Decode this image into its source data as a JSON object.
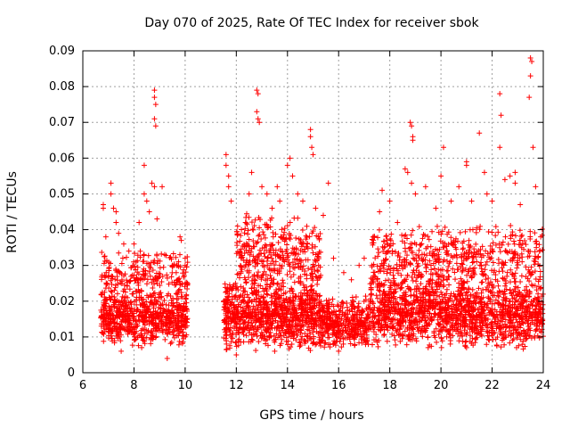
{
  "chart_data": {
    "type": "scatter",
    "title": "Day 070 of 2025, Rate Of TEC Index for receiver sbok",
    "xlabel": "GPS time / hours",
    "ylabel": "ROTI / TECUs",
    "xlim": [
      6,
      24
    ],
    "ylim": [
      0,
      0.09
    ],
    "xticks": [
      "6",
      "8",
      "10",
      "12",
      "14",
      "16",
      "18",
      "20",
      "22",
      "24"
    ],
    "yticks": [
      "0",
      "0.01",
      "0.02",
      "0.03",
      "0.04",
      "0.05",
      "0.06",
      "0.07",
      "0.08",
      "0.09"
    ],
    "grid": true,
    "marker": "+",
    "color": "#ff0000",
    "series": [
      {
        "name": "ROTI",
        "points": [
          [
            6.8,
            0.047
          ],
          [
            6.8,
            0.046
          ],
          [
            6.9,
            0.038
          ],
          [
            7.1,
            0.053
          ],
          [
            7.1,
            0.05
          ],
          [
            7.2,
            0.046
          ],
          [
            7.3,
            0.045
          ],
          [
            7.3,
            0.042
          ],
          [
            7.4,
            0.039
          ],
          [
            7.6,
            0.036
          ],
          [
            7.8,
            0.034
          ],
          [
            8.0,
            0.036
          ],
          [
            8.2,
            0.042
          ],
          [
            8.4,
            0.058
          ],
          [
            8.4,
            0.05
          ],
          [
            8.5,
            0.048
          ],
          [
            8.6,
            0.045
          ],
          [
            8.7,
            0.053
          ],
          [
            8.8,
            0.079
          ],
          [
            8.8,
            0.077
          ],
          [
            8.85,
            0.075
          ],
          [
            8.8,
            0.071
          ],
          [
            8.85,
            0.069
          ],
          [
            8.8,
            0.052
          ],
          [
            8.9,
            0.043
          ],
          [
            9.1,
            0.052
          ],
          [
            9.2,
            0.033
          ],
          [
            9.5,
            0.03
          ],
          [
            9.8,
            0.038
          ],
          [
            9.85,
            0.037
          ],
          [
            10.0,
            0.032
          ],
          [
            10.0,
            0.03
          ],
          [
            9.3,
            0.004
          ],
          [
            7.5,
            0.006
          ],
          [
            8.3,
            0.007
          ],
          [
            11.6,
            0.061
          ],
          [
            11.6,
            0.058
          ],
          [
            11.7,
            0.055
          ],
          [
            11.7,
            0.052
          ],
          [
            11.8,
            0.048
          ],
          [
            12.2,
            0.04
          ],
          [
            12.5,
            0.05
          ],
          [
            12.6,
            0.056
          ],
          [
            12.8,
            0.079
          ],
          [
            12.85,
            0.078
          ],
          [
            12.8,
            0.073
          ],
          [
            12.85,
            0.071
          ],
          [
            12.9,
            0.07
          ],
          [
            13.0,
            0.052
          ],
          [
            13.2,
            0.05
          ],
          [
            13.4,
            0.046
          ],
          [
            13.6,
            0.052
          ],
          [
            13.7,
            0.048
          ],
          [
            14.0,
            0.058
          ],
          [
            14.1,
            0.06
          ],
          [
            14.2,
            0.055
          ],
          [
            14.4,
            0.05
          ],
          [
            14.6,
            0.048
          ],
          [
            14.9,
            0.068
          ],
          [
            14.9,
            0.066
          ],
          [
            14.95,
            0.063
          ],
          [
            15.0,
            0.061
          ],
          [
            15.1,
            0.046
          ],
          [
            15.4,
            0.044
          ],
          [
            15.6,
            0.053
          ],
          [
            15.8,
            0.032
          ],
          [
            16.2,
            0.028
          ],
          [
            16.5,
            0.026
          ],
          [
            16.8,
            0.03
          ],
          [
            17.0,
            0.032
          ],
          [
            17.4,
            0.038
          ],
          [
            17.6,
            0.045
          ],
          [
            17.7,
            0.051
          ],
          [
            18.0,
            0.048
          ],
          [
            18.3,
            0.042
          ],
          [
            18.6,
            0.057
          ],
          [
            18.7,
            0.056
          ],
          [
            18.8,
            0.07
          ],
          [
            18.85,
            0.069
          ],
          [
            18.9,
            0.066
          ],
          [
            18.9,
            0.065
          ],
          [
            18.85,
            0.053
          ],
          [
            19.0,
            0.05
          ],
          [
            19.4,
            0.052
          ],
          [
            19.8,
            0.046
          ],
          [
            20.0,
            0.055
          ],
          [
            20.1,
            0.063
          ],
          [
            20.4,
            0.048
          ],
          [
            20.7,
            0.052
          ],
          [
            21.0,
            0.059
          ],
          [
            21.0,
            0.058
          ],
          [
            21.2,
            0.048
          ],
          [
            21.5,
            0.067
          ],
          [
            21.7,
            0.056
          ],
          [
            21.8,
            0.05
          ],
          [
            22.0,
            0.048
          ],
          [
            22.3,
            0.078
          ],
          [
            22.35,
            0.072
          ],
          [
            22.3,
            0.063
          ],
          [
            22.5,
            0.054
          ],
          [
            22.7,
            0.055
          ],
          [
            22.9,
            0.056
          ],
          [
            22.9,
            0.053
          ],
          [
            23.1,
            0.047
          ],
          [
            23.5,
            0.088
          ],
          [
            23.55,
            0.087
          ],
          [
            23.5,
            0.083
          ],
          [
            23.45,
            0.077
          ],
          [
            23.6,
            0.063
          ],
          [
            23.7,
            0.052
          ],
          [
            23.9,
            0.038
          ],
          [
            12.0,
            0.005
          ],
          [
            13.5,
            0.006
          ],
          [
            16.0,
            0.006
          ],
          [
            19.5,
            0.007
          ],
          [
            21.0,
            0.007
          ]
        ],
        "bands": [
          {
            "x_range": [
              6.7,
              10.1
            ],
            "y_range": [
              0.007,
              0.024
            ],
            "density": 700
          },
          {
            "x_range": [
              6.7,
              10.1
            ],
            "y_range": [
              0.02,
              0.035
            ],
            "density": 220
          },
          {
            "x_range": [
              11.5,
              15.3
            ],
            "y_range": [
              0.006,
              0.026
            ],
            "density": 900
          },
          {
            "x_range": [
              12.0,
              15.3
            ],
            "y_range": [
              0.02,
              0.045
            ],
            "density": 380
          },
          {
            "x_range": [
              15.3,
              17.2
            ],
            "y_range": [
              0.006,
              0.022
            ],
            "density": 380
          },
          {
            "x_range": [
              17.2,
              20.0
            ],
            "y_range": [
              0.007,
              0.028
            ],
            "density": 600
          },
          {
            "x_range": [
              17.3,
              20.0
            ],
            "y_range": [
              0.022,
              0.042
            ],
            "density": 220
          },
          {
            "x_range": [
              20.0,
              24.0
            ],
            "y_range": [
              0.006,
              0.027
            ],
            "density": 850
          },
          {
            "x_range": [
              20.0,
              24.0
            ],
            "y_range": [
              0.022,
              0.042
            ],
            "density": 300
          }
        ]
      }
    ]
  }
}
